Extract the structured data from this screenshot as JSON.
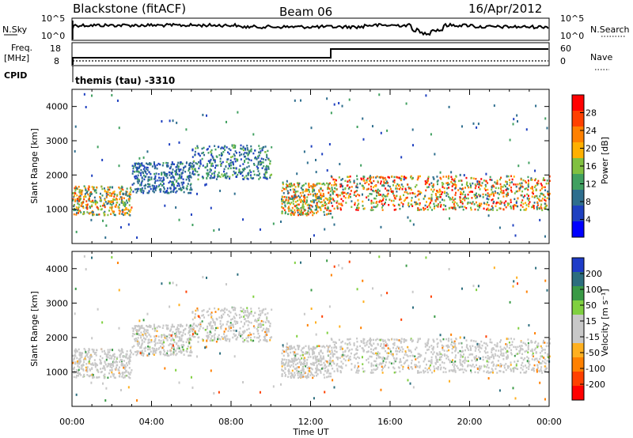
{
  "header": {
    "title": "Blackstone (fitACF)",
    "beam": "Beam 06",
    "date": "16/Apr/2012"
  },
  "top_panels": {
    "nsky_label": "N.Sky",
    "nsearch_label": "N.Search",
    "freq_label": "Freq.",
    "freq_unit": "[MHz]",
    "nave_label": "Nave",
    "cpid_label": "CPID",
    "cpid_text": "themis (tau)  -3310",
    "noise_ticks": [
      "10^5",
      "10^0"
    ],
    "freq_ticks": [
      "18",
      "8"
    ],
    "nave_ticks": [
      "60",
      "0"
    ]
  },
  "colorbars": {
    "power": {
      "label": "Power [dB]",
      "ticks": [
        "28",
        "24",
        "20",
        "16",
        "12",
        "8",
        "4"
      ],
      "colors": [
        "#ff0000",
        "#ff4000",
        "#ff8000",
        "#ffb000",
        "#80c040",
        "#40a060",
        "#2e6e8e",
        "#1e40c0",
        "#0000ff"
      ]
    },
    "velocity": {
      "label": "Velocity [m s⁻¹]",
      "ticks": [
        "200",
        "100",
        "50",
        "15",
        "-15",
        "-50",
        "-100",
        "-200"
      ],
      "colors": [
        "#1e3cc8",
        "#2c6e7e",
        "#3a9a46",
        "#80d040",
        "#c8c8c8",
        "#c8c8c8",
        "#ffb020",
        "#ff8000",
        "#ff4000",
        "#ff0000"
      ]
    }
  },
  "chart_data": [
    {
      "type": "heatmap",
      "name": "Power",
      "ylabel": "Slant Range [km]",
      "ylim": [
        0,
        4500
      ],
      "yticks": [
        1000,
        2000,
        3000,
        4000
      ],
      "xlim": [
        0,
        24
      ],
      "xtick_labels": [
        "00:00",
        "04:00",
        "08:00",
        "12:00",
        "16:00",
        "20:00",
        "00:00"
      ],
      "colorbar": "Power [dB]",
      "colorbar_range": [
        0,
        32
      ],
      "scatter_bands": [
        {
          "hours": [
            0,
            3
          ],
          "range_km": [
            850,
            1700
          ],
          "power_db": [
            8,
            28
          ]
        },
        {
          "hours": [
            3,
            6
          ],
          "range_km": [
            1500,
            2400
          ],
          "power_db": [
            4,
            12
          ]
        },
        {
          "hours": [
            6,
            10
          ],
          "range_km": [
            1900,
            2900
          ],
          "power_db": [
            4,
            16
          ]
        },
        {
          "hours": [
            10.5,
            13
          ],
          "range_km": [
            850,
            1800
          ],
          "power_db": [
            8,
            28
          ]
        },
        {
          "hours": [
            13,
            24
          ],
          "range_km": [
            1000,
            2000
          ],
          "power_db": [
            8,
            32
          ]
        }
      ]
    },
    {
      "type": "heatmap",
      "name": "Velocity",
      "ylabel": "Slant Range [km]",
      "xlabel": "Time UT",
      "ylim": [
        0,
        4500
      ],
      "yticks": [
        1000,
        2000,
        3000,
        4000
      ],
      "xlim": [
        0,
        24
      ],
      "xtick_labels": [
        "00:00",
        "04:00",
        "08:00",
        "12:00",
        "16:00",
        "20:00",
        "00:00"
      ],
      "colorbar": "Velocity [m s⁻¹]",
      "colorbar_range": [
        -250,
        250
      ],
      "dominant_value_range": [
        -15,
        15
      ]
    }
  ]
}
